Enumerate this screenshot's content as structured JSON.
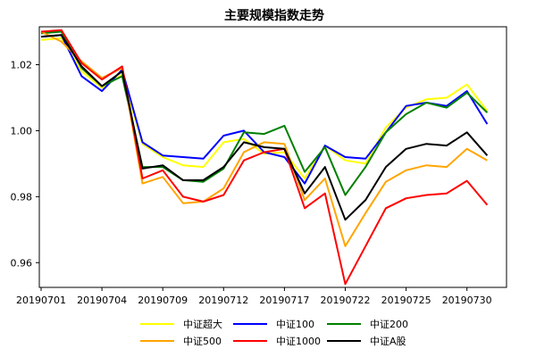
{
  "chart_data": {
    "type": "line",
    "title": "主要规模指数走势",
    "xlabel": "",
    "ylabel": "",
    "x": [
      "20190701",
      "20190702",
      "20190703",
      "20190704",
      "20190705",
      "20190708",
      "20190709",
      "20190710",
      "20190711",
      "20190712",
      "20190715",
      "20190716",
      "20190717",
      "20190718",
      "20190719",
      "20190722",
      "20190723",
      "20190724",
      "20190725",
      "20190726",
      "20190729",
      "20190730",
      "20190731"
    ],
    "xticks": [
      "20190701",
      "20190704",
      "20190709",
      "20190712",
      "20190717",
      "20190722",
      "20190725",
      "20190730"
    ],
    "ylim": [
      0.9525,
      1.0315
    ],
    "yticks": [
      0.96,
      0.98,
      1.0,
      1.02
    ],
    "ytick_labels": [
      "0.96",
      "0.98",
      "1.00",
      "1.02"
    ],
    "grid": false,
    "legend_position": "bottom",
    "series": [
      {
        "name": "中证超大",
        "color": "#FFFF00",
        "values": [
          1.0275,
          1.028,
          1.018,
          1.013,
          1.017,
          0.996,
          0.992,
          0.9895,
          0.989,
          0.9965,
          0.9975,
          0.993,
          0.9935,
          0.9855,
          0.9955,
          0.991,
          0.99,
          1.001,
          1.007,
          1.0095,
          1.01,
          1.014,
          1.006
        ]
      },
      {
        "name": "中证100",
        "color": "#0000FF",
        "values": [
          1.0285,
          1.029,
          1.0165,
          1.012,
          1.0185,
          0.9965,
          0.9925,
          0.992,
          0.9915,
          0.9985,
          1.0,
          0.9935,
          0.992,
          0.984,
          0.9955,
          0.992,
          0.9915,
          0.9995,
          1.0075,
          1.0085,
          1.0075,
          1.012,
          1.002
        ]
      },
      {
        "name": "中证200",
        "color": "#008000",
        "values": [
          1.0295,
          1.03,
          1.019,
          1.0135,
          1.0165,
          0.989,
          0.989,
          0.985,
          0.9845,
          0.9885,
          0.9995,
          0.999,
          1.0015,
          0.9875,
          0.995,
          0.9805,
          0.989,
          0.9995,
          1.005,
          1.0085,
          1.007,
          1.0115,
          1.0055
        ]
      },
      {
        "name": "中证500",
        "color": "#FFA500",
        "values": [
          1.03,
          1.027,
          1.021,
          1.016,
          1.019,
          0.984,
          0.986,
          0.978,
          0.9785,
          0.9825,
          0.9935,
          0.9965,
          0.996,
          0.979,
          0.9855,
          0.965,
          0.975,
          0.9845,
          0.988,
          0.9895,
          0.989,
          0.9945,
          0.991
        ]
      },
      {
        "name": "中证1000",
        "color": "#FF0000",
        "values": [
          1.03,
          1.0305,
          1.0205,
          1.0155,
          1.0195,
          0.9855,
          0.988,
          0.98,
          0.9785,
          0.9805,
          0.991,
          0.9935,
          0.9945,
          0.9765,
          0.981,
          0.9535,
          0.965,
          0.9765,
          0.9795,
          0.9805,
          0.981,
          0.9848,
          0.9775
        ]
      },
      {
        "name": "中证A股",
        "color": "#000000",
        "values": [
          1.0285,
          1.029,
          1.0195,
          1.0135,
          1.018,
          0.9885,
          0.9895,
          0.985,
          0.985,
          0.989,
          0.9965,
          0.995,
          0.9945,
          0.981,
          0.989,
          0.973,
          0.979,
          0.989,
          0.9945,
          0.996,
          0.9955,
          0.9995,
          0.9925
        ]
      }
    ]
  }
}
